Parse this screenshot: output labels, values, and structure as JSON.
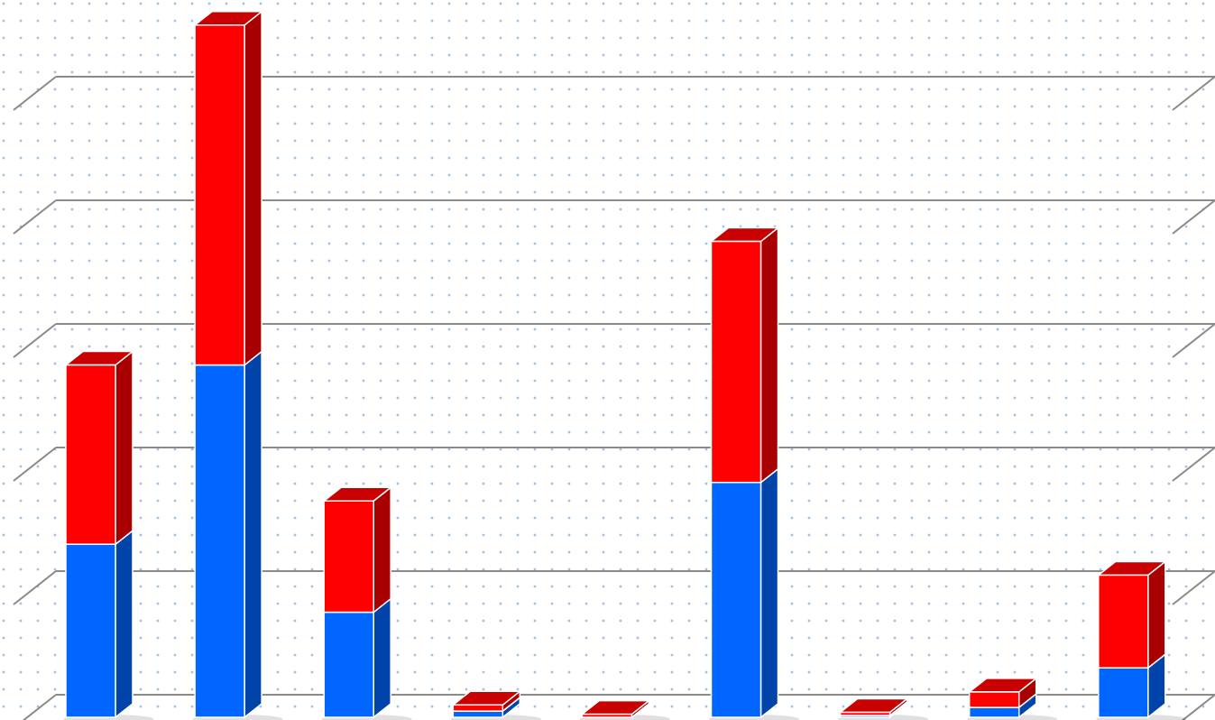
{
  "chart_data": {
    "type": "bar3d_stacked",
    "categories": [
      null,
      null,
      null,
      null,
      null,
      null,
      null,
      null,
      null
    ],
    "series": [
      {
        "color": "#0066ff",
        "side_color": "#0044aa",
        "top_color": "#0050cc",
        "values": [
          28,
          57,
          17,
          1,
          0,
          38,
          0.3,
          1.6,
          8
        ]
      },
      {
        "color": "#ff0000",
        "side_color": "#a80000",
        "top_color": "#c80000",
        "values": [
          29,
          55,
          18,
          1,
          0.5,
          39,
          0.5,
          2.5,
          15
        ]
      }
    ],
    "ylim": [
      0,
      120
    ],
    "yticks": [
      0,
      20,
      40,
      60,
      80,
      100
    ],
    "grid": true
  }
}
